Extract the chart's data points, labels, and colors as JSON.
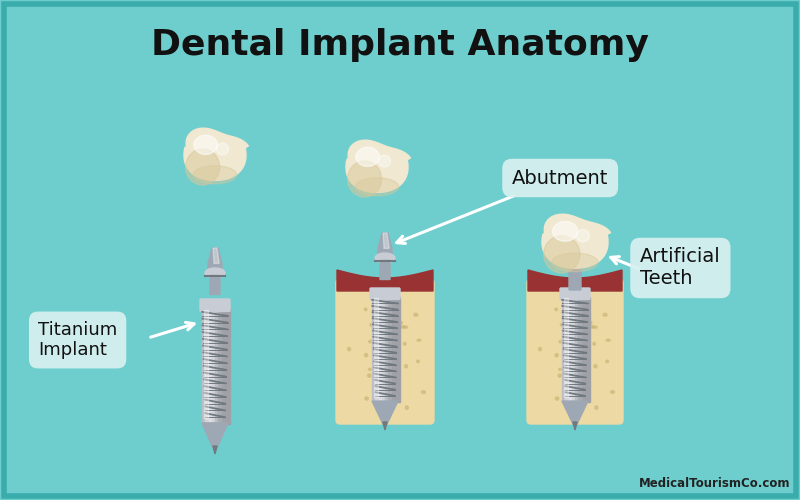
{
  "title": "Dental Implant Anatomy",
  "title_fontsize": 26,
  "title_fontweight": "bold",
  "bg_color": "#6ECECE",
  "border_color": "#3AACAC",
  "watermark": "MedicalTourismCo.com",
  "labels": {
    "titanium": "Titanium\nImplant",
    "abutment": "Abutment",
    "artificial": "Artificial\nTeeth"
  },
  "label_box_color": "#D8F0F0",
  "label_text_color": "#111111",
  "bone_color": "#EDD9A3",
  "gum_color": "#993333",
  "implant_color_light": "#C8CDD5",
  "implant_color_mid": "#9EA8B4",
  "implant_color_dark": "#707880",
  "crown_color_light": "#F0E8D0",
  "crown_color_mid": "#D8C89A",
  "crown_color_dark": "#B8A870"
}
